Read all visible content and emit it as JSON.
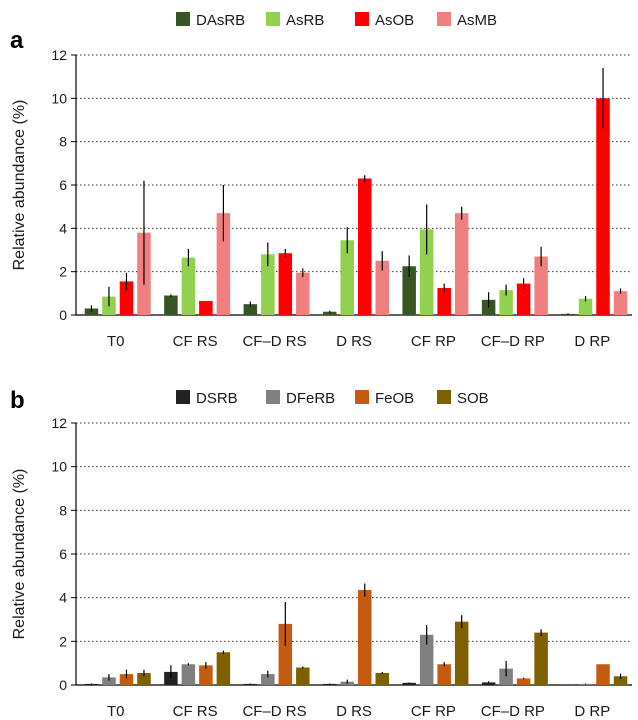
{
  "figure": {
    "panels": [
      "a",
      "b"
    ]
  },
  "chart_data": [
    {
      "panel": "a",
      "type": "bar",
      "ylabel": "Relative abundance (%)",
      "xlabel": "",
      "ylim": [
        0,
        12
      ],
      "yticks": [
        0,
        2,
        4,
        6,
        8,
        10,
        12
      ],
      "grid": "horizontal dotted",
      "legend_position": "top",
      "categories": [
        "T0",
        "CF RS",
        "CF–D RS",
        "D RS",
        "CF RP",
        "CF–D RP",
        "D RP"
      ],
      "series": [
        {
          "name": "DAsRB",
          "color": "#375623",
          "values": [
            0.3,
            0.9,
            0.5,
            0.15,
            2.25,
            0.7,
            0.05
          ],
          "errors": [
            0.15,
            0.05,
            0.12,
            0.05,
            0.5,
            0.35,
            0.03
          ]
        },
        {
          "name": "AsRB",
          "color": "#92d050",
          "values": [
            0.85,
            2.65,
            2.8,
            3.45,
            3.95,
            1.15,
            0.75
          ],
          "errors": [
            0.45,
            0.4,
            0.55,
            0.6,
            1.15,
            0.25,
            0.12
          ]
        },
        {
          "name": "AsOB",
          "color": "#ff0000",
          "values": [
            1.55,
            0.65,
            2.85,
            6.3,
            1.25,
            1.45,
            10.0
          ],
          "errors": [
            0.4,
            0.0,
            0.2,
            0.15,
            0.2,
            0.25,
            1.4
          ]
        },
        {
          "name": "AsMB",
          "color": "#f08080",
          "values": [
            3.8,
            4.7,
            1.95,
            2.5,
            4.7,
            2.7,
            1.1
          ],
          "errors": [
            2.4,
            1.3,
            0.2,
            0.45,
            0.3,
            0.45,
            0.12
          ]
        }
      ]
    },
    {
      "panel": "b",
      "type": "bar",
      "ylabel": "Relative abundance (%)",
      "xlabel": "",
      "ylim": [
        0,
        12
      ],
      "yticks": [
        0,
        2,
        4,
        6,
        8,
        10,
        12
      ],
      "grid": "horizontal dotted",
      "legend_position": "top",
      "categories": [
        "T0",
        "CF RS",
        "CF–D RS",
        "D RS",
        "CF RP",
        "CF–D RP",
        "D RP"
      ],
      "series": [
        {
          "name": "DSRB",
          "color": "#222222",
          "values": [
            0.05,
            0.6,
            0.05,
            0.05,
            0.1,
            0.12,
            0.02
          ],
          "errors": [
            0.02,
            0.3,
            0.02,
            0.02,
            0.02,
            0.05,
            0.01
          ]
        },
        {
          "name": "DFeRB",
          "color": "#808080",
          "values": [
            0.35,
            0.95,
            0.5,
            0.15,
            2.3,
            0.75,
            0.05
          ],
          "errors": [
            0.15,
            0.05,
            0.15,
            0.1,
            0.45,
            0.35,
            0.02
          ]
        },
        {
          "name": "FeOB",
          "color": "#c55a11",
          "values": [
            0.5,
            0.9,
            2.8,
            4.35,
            0.95,
            0.3,
            0.95
          ],
          "errors": [
            0.2,
            0.15,
            1.0,
            0.3,
            0.1,
            0.03,
            0.0
          ]
        },
        {
          "name": "SOB",
          "color": "#7f6000",
          "values": [
            0.55,
            1.5,
            0.8,
            0.55,
            2.9,
            2.4,
            0.4
          ],
          "errors": [
            0.15,
            0.08,
            0.05,
            0.05,
            0.3,
            0.15,
            0.12
          ]
        }
      ]
    }
  ]
}
